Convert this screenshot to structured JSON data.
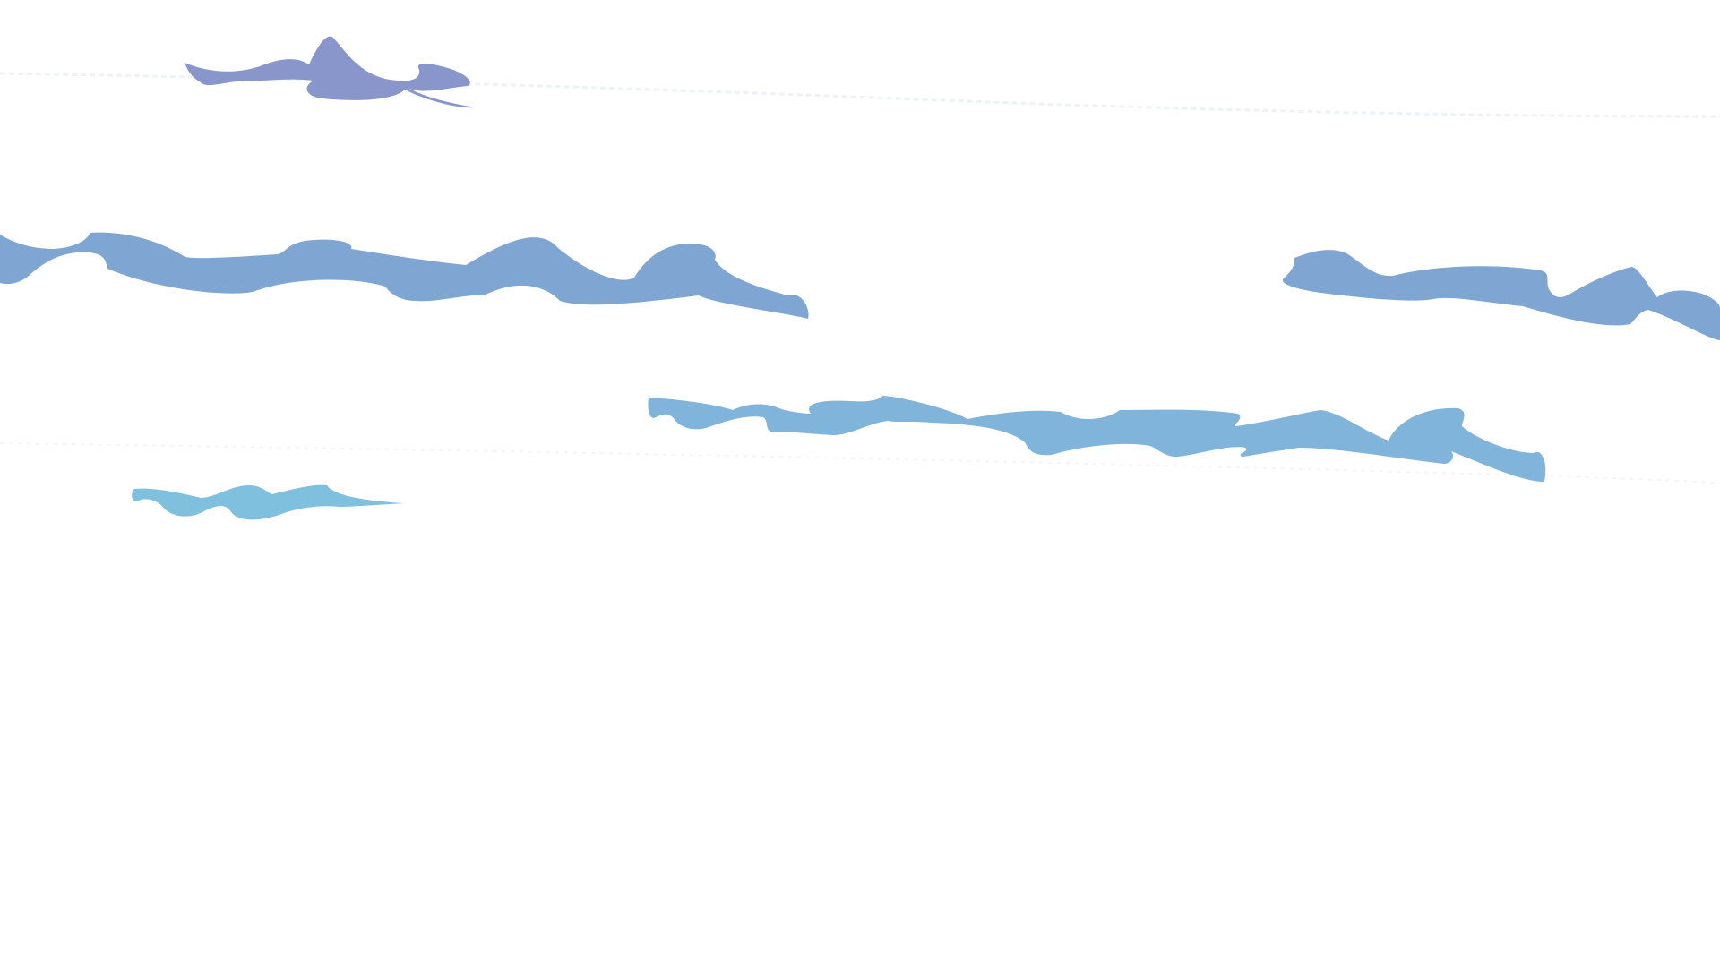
{
  "colors": {
    "background": "#ffffff",
    "wave_top": "#8896cb",
    "wave_upper": "#7fa6d3",
    "wave_middle": "#80b4da",
    "wave_lower": "#7ec0de",
    "faint_line": "#eef2f6"
  },
  "waves": [
    {
      "name": "wave-top-small",
      "color_key": "wave_top"
    },
    {
      "name": "wave-upper-left",
      "color_key": "wave_upper"
    },
    {
      "name": "wave-upper-right",
      "color_key": "wave_upper"
    },
    {
      "name": "wave-middle",
      "color_key": "wave_middle"
    },
    {
      "name": "wave-lower-small",
      "color_key": "wave_lower"
    }
  ]
}
